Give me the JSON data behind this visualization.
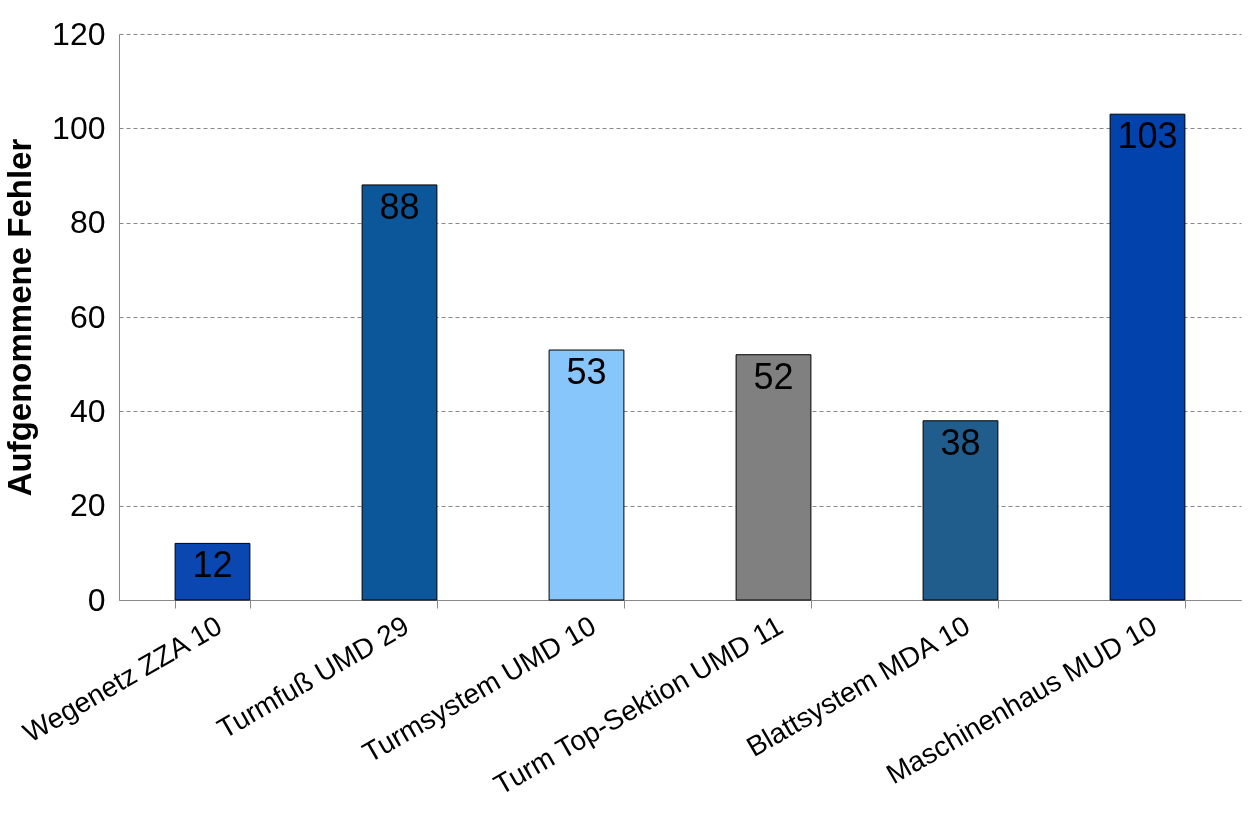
{
  "chart_data": {
    "type": "bar",
    "ylabel": "Aufgenommene Fehler",
    "categories": [
      "Wegenetz ZZA 10",
      "Turmfuß UMD 29",
      "Turmsystem UMD 10",
      "Turm Top-Sektion UMD 11",
      "Blattsystem MDA 10",
      "Maschinenhaus MUD 10"
    ],
    "values": [
      12,
      88,
      53,
      52,
      38,
      103
    ],
    "colors": [
      "#0a47b0",
      "#0b5799",
      "#87c6fb",
      "#808080",
      "#215d8c",
      "#0242ac"
    ],
    "ylim": [
      0,
      120
    ],
    "yticks": [
      0,
      20,
      40,
      60,
      80,
      100,
      120
    ],
    "grid": "y",
    "data_labels": true
  }
}
